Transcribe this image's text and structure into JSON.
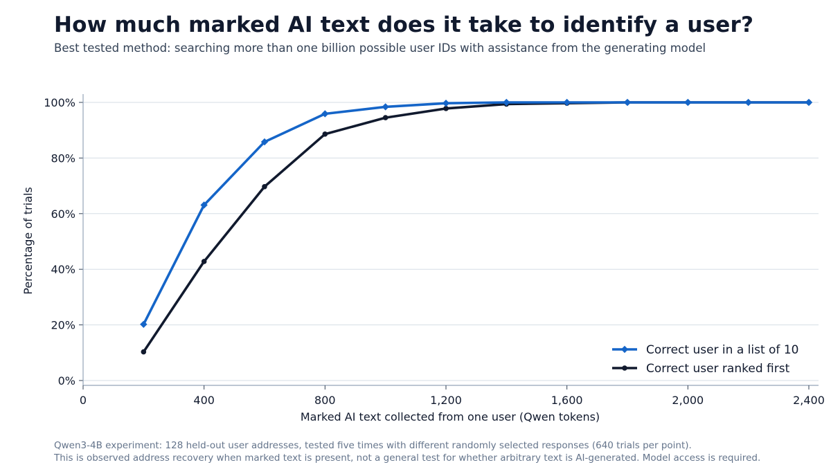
{
  "header": {
    "title": "How much marked AI text does it take to identify a user?",
    "subtitle": "Best tested method: searching more than one billion possible user IDs with assistance from the generating model"
  },
  "footer": {
    "line1": "Qwen3-4B experiment: 128 held-out user addresses, tested five times with different randomly selected responses (640 trials per point).",
    "line2": "This is observed address recovery when marked text is present, not a general test for whether arbitrary text is AI-generated. Model access is required."
  },
  "colors": {
    "list10": "#1565c8",
    "first": "#111a2e",
    "grid": "#d5dde5",
    "axis": "#94a3b8"
  },
  "chart_data": {
    "type": "line",
    "title": "How much marked AI text does it take to identify a user?",
    "xlabel": "Marked AI text collected from one user (Qwen tokens)",
    "ylabel": "Percentage of trials",
    "xlim": [
      0,
      2400
    ],
    "ylim": [
      0,
      100
    ],
    "x_ticks": [
      0,
      400,
      800,
      1200,
      1600,
      2000,
      2400
    ],
    "x_tick_labels": [
      "0",
      "400",
      "800",
      "1,200",
      "1,600",
      "2,000",
      "2,400"
    ],
    "y_ticks": [
      0,
      20,
      40,
      60,
      80,
      100
    ],
    "y_tick_labels": [
      "0%",
      "20%",
      "40%",
      "60%",
      "80%",
      "100%"
    ],
    "grid": "horizontal",
    "legend_position": "bottom-right",
    "x": [
      200,
      400,
      600,
      800,
      1000,
      1200,
      1400,
      1600,
      1800,
      2000,
      2200,
      2400
    ],
    "series": [
      {
        "name": "Correct user in a list of 10",
        "marker": "diamond",
        "color": "#1565c8",
        "values": [
          20.2,
          63.1,
          85.8,
          95.9,
          98.4,
          99.7,
          100,
          100,
          100,
          100,
          100,
          100
        ]
      },
      {
        "name": "Correct user ranked first",
        "marker": "circle",
        "color": "#111a2e",
        "values": [
          10.3,
          42.8,
          69.7,
          88.6,
          94.5,
          97.8,
          99.4,
          99.7,
          100,
          100,
          100,
          100
        ]
      }
    ]
  }
}
